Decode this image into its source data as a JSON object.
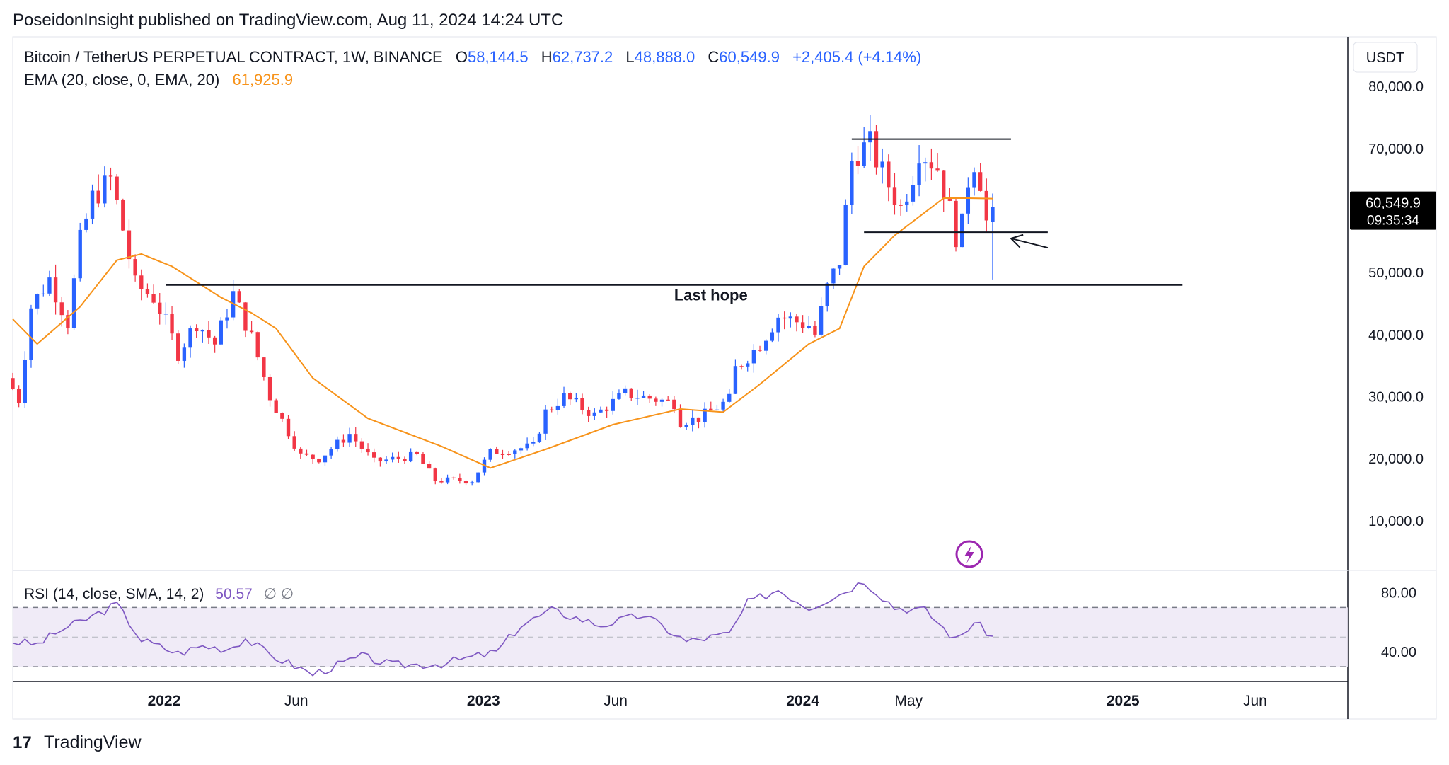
{
  "publish_line": "PoseidonInsight published on TradingView.com, Aug 11, 2024 14:24 UTC",
  "header": {
    "symbol": "Bitcoin / TetherUS PERPETUAL CONTRACT, 1W, BINANCE",
    "open_label": "O",
    "open": "58,144.5",
    "high_label": "H",
    "high": "62,737.2",
    "low_label": "L",
    "low": "48,888.0",
    "close_label": "C",
    "close": "60,549.9",
    "change": "+2,405.4 (+4.14%)",
    "ema_label": "EMA (20, close, 0, EMA, 20)",
    "ema_value": "61,925.9"
  },
  "currency": "USDT",
  "price_badge": {
    "price": "60,549.9",
    "countdown": "09:35:34"
  },
  "annotations": {
    "last_hope": "Last hope"
  },
  "rsi_header": {
    "label": "RSI (14, close, SMA, 14, 2)",
    "value": "50.57",
    "extra": "∅ ∅"
  },
  "footer": {
    "logo_mark": "17",
    "brand": "TradingView"
  },
  "colors": {
    "up": "#2962ff",
    "down": "#f23645",
    "ema": "#f7931a",
    "rsi": "#7e57c2",
    "rsi_fill": "#ede7f6",
    "text": "#131722",
    "axis_text": "#6a6d78",
    "ohlc": "#2962ff"
  },
  "chart_data": [
    {
      "type": "candlestick",
      "title": "Bitcoin / TetherUS PERPETUAL CONTRACT, 1W, BINANCE",
      "x_ticks": [
        "2022",
        "Jun",
        "2023",
        "Jun",
        "2024",
        "May",
        "2025",
        "Jun"
      ],
      "x_tick_dates": [
        "2022-01-01",
        "2022-06-01",
        "2023-01-01",
        "2023-06-01",
        "2024-01-01",
        "2024-05-01",
        "2025-01-01",
        "2025-06-01"
      ],
      "x_range": [
        "2021-07-12",
        "2025-09-15"
      ],
      "y_ticks": [
        "80,000.0",
        "70,000.0",
        "50,000.0",
        "40,000.0",
        "30,000.0",
        "20,000.0",
        "10,000.0"
      ],
      "y_tick_values": [
        80000,
        70000,
        50000,
        40000,
        30000,
        20000,
        10000
      ],
      "y_range": [
        2000,
        88000
      ],
      "keypoints": [
        [
          "2021-07-12",
          33000
        ],
        [
          "2021-07-26",
          29500
        ],
        [
          "2021-08-09",
          44500
        ],
        [
          "2021-08-30",
          49000
        ],
        [
          "2021-09-20",
          42000
        ],
        [
          "2021-10-04",
          55000
        ],
        [
          "2021-10-18",
          62000
        ],
        [
          "2021-11-08",
          65000
        ],
        [
          "2021-11-22",
          57000
        ],
        [
          "2021-12-06",
          48000
        ],
        [
          "2021-12-27",
          46000
        ],
        [
          "2022-01-10",
          42000
        ],
        [
          "2022-01-24",
          37000
        ],
        [
          "2022-02-14",
          42000
        ],
        [
          "2022-03-07",
          38500
        ],
        [
          "2022-03-28",
          46500
        ],
        [
          "2022-04-18",
          39500
        ],
        [
          "2022-05-09",
          30000
        ],
        [
          "2022-06-13",
          20500
        ],
        [
          "2022-07-04",
          20000
        ],
        [
          "2022-08-08",
          24000
        ],
        [
          "2022-09-05",
          19500
        ],
        [
          "2022-10-24",
          20500
        ],
        [
          "2022-11-14",
          16500
        ],
        [
          "2022-12-26",
          16500
        ],
        [
          "2023-01-16",
          21000
        ],
        [
          "2023-03-06",
          22000
        ],
        [
          "2023-03-20",
          27500
        ],
        [
          "2023-04-10",
          30000
        ],
        [
          "2023-05-15",
          27000
        ],
        [
          "2023-06-19",
          30500
        ],
        [
          "2023-08-14",
          29000
        ],
        [
          "2023-08-21",
          26000
        ],
        [
          "2023-09-11",
          26500
        ],
        [
          "2023-10-16",
          29500
        ],
        [
          "2023-10-23",
          34500
        ],
        [
          "2023-11-20",
          38500
        ],
        [
          "2023-12-11",
          43000
        ],
        [
          "2024-01-15",
          41500
        ],
        [
          "2024-01-22",
          40000
        ],
        [
          "2024-02-05",
          47500
        ],
        [
          "2024-02-19",
          52000
        ],
        [
          "2024-03-04",
          68000
        ],
        [
          "2024-03-11",
          69500
        ],
        [
          "2024-03-25",
          70500
        ],
        [
          "2024-04-08",
          66000
        ],
        [
          "2024-04-29",
          60500
        ],
        [
          "2024-05-13",
          66000
        ],
        [
          "2024-05-20",
          70000
        ],
        [
          "2024-06-10",
          67000
        ],
        [
          "2024-06-24",
          60000
        ],
        [
          "2024-07-01",
          56000
        ],
        [
          "2024-07-08",
          57500
        ],
        [
          "2024-07-15",
          65000
        ],
        [
          "2024-07-22",
          68000
        ],
        [
          "2024-07-29",
          65000
        ],
        [
          "2024-08-05",
          58144.5
        ]
      ],
      "last_candle": {
        "date": "2024-08-05",
        "open": 58144.5,
        "high": 62737.2,
        "low": 48888.0,
        "close": 60549.9
      },
      "ema_series": {
        "name": "EMA (20, close, 0, EMA, 20)",
        "points": [
          [
            "2021-07-12",
            42500
          ],
          [
            "2021-08-09",
            38500
          ],
          [
            "2021-09-27",
            44500
          ],
          [
            "2021-11-08",
            52000
          ],
          [
            "2021-12-06",
            53000
          ],
          [
            "2022-01-10",
            51000
          ],
          [
            "2022-03-07",
            46000
          ],
          [
            "2022-04-11",
            43500
          ],
          [
            "2022-05-09",
            41000
          ],
          [
            "2022-06-20",
            33000
          ],
          [
            "2022-08-22",
            26500
          ],
          [
            "2022-11-14",
            22000
          ],
          [
            "2023-01-09",
            18500
          ],
          [
            "2023-03-13",
            21500
          ],
          [
            "2023-05-29",
            25500
          ],
          [
            "2023-08-14",
            28000
          ],
          [
            "2023-10-02",
            27500
          ],
          [
            "2023-11-13",
            32000
          ],
          [
            "2024-01-08",
            38500
          ],
          [
            "2024-02-12",
            41000
          ],
          [
            "2024-03-11",
            51000
          ],
          [
            "2024-04-15",
            56000
          ],
          [
            "2024-06-10",
            62000
          ],
          [
            "2024-07-08",
            62000
          ],
          [
            "2024-08-05",
            61925.9
          ]
        ]
      },
      "lines": [
        {
          "kind": "horizontal",
          "start": "2024-02-26",
          "end": "2024-08-26",
          "price": 71500
        },
        {
          "kind": "horizontal",
          "start": "2024-03-11",
          "end": "2024-10-07",
          "price": 56500
        },
        {
          "kind": "horizontal",
          "start": "2022-01-03",
          "end": "2025-03-10",
          "price": 48000
        }
      ],
      "arrow": {
        "from": [
          "2024-10-07",
          54000
        ],
        "to": [
          "2024-08-26",
          55500
        ]
      },
      "last_hope_at": [
        "2023-09-18",
        45500
      ]
    },
    {
      "type": "line",
      "title": "RSI (14, close, SMA, 14, 2)",
      "y_ticks": [
        "80.00",
        "40.00"
      ],
      "y_tick_values": [
        80,
        40
      ],
      "y_range": [
        20,
        95
      ],
      "bands": [
        70,
        50,
        30
      ],
      "series": [
        {
          "name": "RSI (14, close, SMA, 14, 2)",
          "points": [
            [
              "2021-07-12",
              47
            ],
            [
              "2021-08-09",
              45
            ],
            [
              "2021-09-06",
              55
            ],
            [
              "2021-10-04",
              62
            ],
            [
              "2021-11-08",
              72
            ],
            [
              "2021-12-06",
              48
            ],
            [
              "2022-01-17",
              39
            ],
            [
              "2022-02-14",
              44
            ],
            [
              "2022-03-14",
              42
            ],
            [
              "2022-04-04",
              49
            ],
            [
              "2022-05-02",
              38
            ],
            [
              "2022-06-20",
              25
            ],
            [
              "2022-08-15",
              37
            ],
            [
              "2022-09-19",
              31
            ],
            [
              "2022-11-14",
              32
            ],
            [
              "2023-01-16",
              40
            ],
            [
              "2023-02-13",
              58
            ],
            [
              "2023-03-20",
              68
            ],
            [
              "2023-05-15",
              58
            ],
            [
              "2023-07-03",
              65
            ],
            [
              "2023-08-21",
              47
            ],
            [
              "2023-10-09",
              52
            ],
            [
              "2023-10-30",
              73
            ],
            [
              "2023-12-04",
              82
            ],
            [
              "2024-01-08",
              70
            ],
            [
              "2024-02-12",
              79
            ],
            [
              "2024-03-11",
              88
            ],
            [
              "2024-04-15",
              70
            ],
            [
              "2024-05-20",
              68
            ],
            [
              "2024-06-24",
              48
            ],
            [
              "2024-07-15",
              60
            ],
            [
              "2024-08-05",
              50.57
            ]
          ]
        }
      ],
      "value": 50.57
    }
  ]
}
